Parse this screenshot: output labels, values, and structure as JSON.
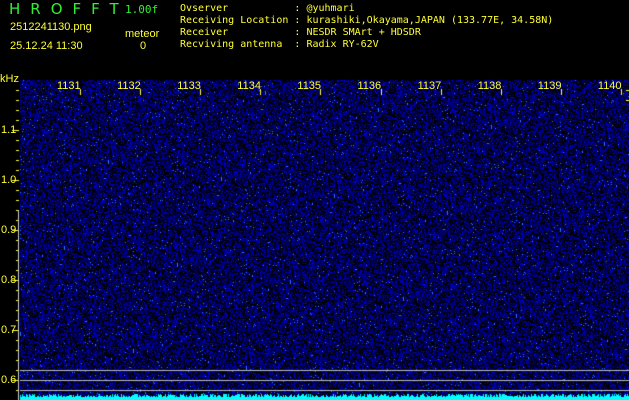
{
  "header": {
    "title": "HROFFT",
    "version": "1.00f",
    "filename": "2512241130.png",
    "datetime": "25.12.24 11:30",
    "meteor_label": "meteor",
    "meteor_count": "0"
  },
  "info": [
    {
      "label": "Ovserver          ",
      "value": ": @yuhmari"
    },
    {
      "label": "Receiving Location",
      "value": ": kurashiki,Okayama,JAPAN (133.77E, 34.58N)"
    },
    {
      "label": "Receiver          ",
      "value": ": NESDR SMArt + HDSDR"
    },
    {
      "label": "Recviving antenna ",
      "value": ": Radix RY-62V"
    }
  ],
  "axis": {
    "unit": "kHz",
    "y_ticks": [
      "1.1",
      "1.0",
      "0.9",
      "0.8",
      "0.7",
      "0.6"
    ],
    "y_range": [
      0.58,
      1.2
    ],
    "x_ticks": [
      "1131",
      "1132",
      "1133",
      "1134",
      "1135",
      "1136",
      "1137",
      "1138",
      "1139",
      "1140"
    ]
  },
  "colors": {
    "text": "#ffff33",
    "title": "#33ee33",
    "noise": "#1a1aff",
    "baseline": "#00ffff",
    "lines": "#bbbbbb"
  }
}
